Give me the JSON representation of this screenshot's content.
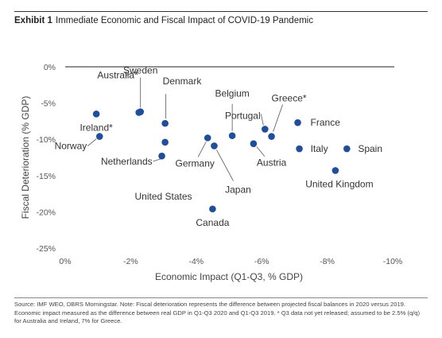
{
  "header": {
    "exhibit_label": "Exhibit 1",
    "title": "Immediate Economic and Fiscal Impact of COVID-19 Pandemic"
  },
  "source_note": "Source: IMF WEO, DBRS Morningstar. Note: Fiscal deterioration represents the difference between projected fiscal balances in 2020 versus 2019. Economic impact measured as the difference between real GDP in Q1-Q3 2020 and Q1-Q3 2019. * Q3 data not yet released; assumed to be 2.5% (q/q) for Australia and Ireland, 7% for Greece.",
  "chart_data": {
    "type": "scatter",
    "xlabel": "Economic Impact (Q1-Q3, % GDP)",
    "ylabel": "Fiscal Deterioration (% GDP)",
    "xlim": [
      0,
      -10
    ],
    "ylim": [
      -25,
      0
    ],
    "x_ticks": [
      0,
      -2,
      -4,
      -6,
      -8,
      -10
    ],
    "x_tick_labels": [
      "0%",
      "-2%",
      "-4%",
      "-6%",
      "-8%",
      "-10%"
    ],
    "y_ticks": [
      0,
      -5,
      -10,
      -15,
      -20,
      -25
    ],
    "y_tick_labels": [
      "0%",
      "-5%",
      "-10%",
      "-15%",
      "-20%",
      "-25%"
    ],
    "zero_line": true,
    "marker_color": "#1f4e9a",
    "points": [
      {
        "label": "Australia*",
        "x": -2.3,
        "y": -6.2
      },
      {
        "label": "Sweden",
        "x": -2.25,
        "y": -6.3
      },
      {
        "label": "Denmark",
        "x": -3.05,
        "y": -7.8
      },
      {
        "label": "Ireland*",
        "x": -0.95,
        "y": -6.5
      },
      {
        "label": "Norway",
        "x": -1.05,
        "y": -9.6
      },
      {
        "label": "Netherlands",
        "x": -3.05,
        "y": -10.4
      },
      {
        "label": "United States",
        "x": -2.95,
        "y": -12.3
      },
      {
        "label": "Germany",
        "x": -4.35,
        "y": -9.8
      },
      {
        "label": "Japan",
        "x": -4.55,
        "y": -10.9
      },
      {
        "label": "Canada",
        "x": -4.5,
        "y": -19.6
      },
      {
        "label": "Belgium",
        "x": -5.1,
        "y": -9.5
      },
      {
        "label": "Austria",
        "x": -5.75,
        "y": -10.6
      },
      {
        "label": "Portugal",
        "x": -6.1,
        "y": -8.6
      },
      {
        "label": "Greece*",
        "x": -6.3,
        "y": -9.6
      },
      {
        "label": "France",
        "x": -7.1,
        "y": -7.7
      },
      {
        "label": "Italy",
        "x": -7.15,
        "y": -11.3
      },
      {
        "label": "Spain",
        "x": -8.6,
        "y": -11.3
      },
      {
        "label": "United Kingdom",
        "x": -8.25,
        "y": -14.3
      }
    ]
  }
}
